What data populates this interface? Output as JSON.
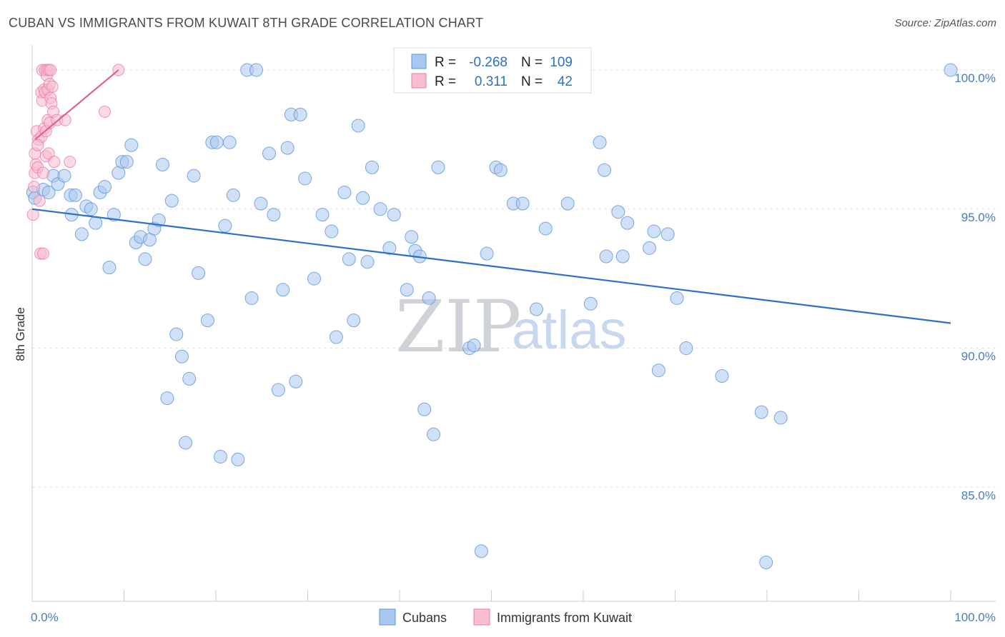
{
  "title": "CUBAN VS IMMIGRANTS FROM KUWAIT 8TH GRADE CORRELATION CHART",
  "source": "Source: ZipAtlas.com",
  "watermark": {
    "zip": "ZIP",
    "atlas": "atlas"
  },
  "colors": {
    "blue": "#5b95d9",
    "blue_fill": "#a9c7f0",
    "blue_line": "#2f6fc9",
    "pink": "#ec7da3",
    "pink_fill": "#f7bcd0",
    "pink_line": "#e06090"
  },
  "legend": {
    "r_label": "R =",
    "n_label": "N =",
    "rows": [
      {
        "r": "-0.268",
        "n": "109"
      },
      {
        "r": "0.311",
        "n": "42"
      }
    ]
  },
  "chart_data": {
    "type": "scatter",
    "title": "CUBAN VS IMMIGRANTS FROM KUWAIT 8TH GRADE CORRELATION CHART",
    "xlabel": "",
    "ylabel": "8th Grade",
    "xlim": [
      0,
      100
    ],
    "ylim": [
      80.9,
      100.9
    ],
    "x_tick_labels": [
      "0.0%",
      "100.0%"
    ],
    "y_ticks": [
      85,
      90,
      95,
      100
    ],
    "y_tick_labels": [
      "85.0%",
      "90.0%",
      "95.0%",
      "100.0%"
    ],
    "grid": true,
    "legend_position": "top-center",
    "series": [
      {
        "name": "Cubans",
        "trend": {
          "x": [
            0,
            100
          ],
          "y": [
            95.0,
            90.9
          ]
        },
        "points": [
          [
            0.1,
            95.6
          ],
          [
            0.3,
            95.4
          ],
          [
            1.2,
            95.7
          ],
          [
            1.8,
            95.6
          ],
          [
            2.3,
            96.2
          ],
          [
            2.8,
            95.9
          ],
          [
            3.5,
            96.2
          ],
          [
            4.2,
            95.5
          ],
          [
            4.3,
            94.8
          ],
          [
            4.7,
            95.5
          ],
          [
            5.4,
            94.1
          ],
          [
            5.9,
            95.1
          ],
          [
            6.4,
            95.0
          ],
          [
            6.9,
            94.5
          ],
          [
            7.4,
            95.6
          ],
          [
            7.9,
            95.8
          ],
          [
            8.4,
            92.9
          ],
          [
            8.9,
            94.8
          ],
          [
            9.4,
            96.3
          ],
          [
            9.8,
            96.7
          ],
          [
            10.3,
            96.7
          ],
          [
            10.8,
            97.3
          ],
          [
            11.3,
            93.8
          ],
          [
            11.8,
            94.0
          ],
          [
            12.3,
            93.2
          ],
          [
            12.8,
            93.9
          ],
          [
            13.3,
            94.3
          ],
          [
            13.8,
            94.6
          ],
          [
            14.2,
            96.6
          ],
          [
            14.7,
            88.2
          ],
          [
            15.2,
            95.3
          ],
          [
            15.7,
            90.5
          ],
          [
            16.3,
            89.7
          ],
          [
            16.7,
            86.6
          ],
          [
            17.1,
            88.9
          ],
          [
            17.6,
            96.2
          ],
          [
            18.1,
            92.7
          ],
          [
            19.1,
            91.0
          ],
          [
            19.6,
            97.4
          ],
          [
            20.1,
            97.4
          ],
          [
            20.5,
            86.1
          ],
          [
            21.0,
            94.4
          ],
          [
            21.5,
            97.4
          ],
          [
            21.9,
            95.5
          ],
          [
            22.4,
            86.0
          ],
          [
            23.4,
            100.0
          ],
          [
            23.9,
            91.8
          ],
          [
            24.4,
            100.0
          ],
          [
            24.9,
            95.2
          ],
          [
            25.8,
            97.0
          ],
          [
            26.3,
            94.8
          ],
          [
            26.8,
            88.5
          ],
          [
            27.3,
            92.1
          ],
          [
            27.8,
            97.2
          ],
          [
            28.2,
            98.4
          ],
          [
            28.7,
            88.8
          ],
          [
            29.2,
            98.4
          ],
          [
            29.7,
            96.1
          ],
          [
            30.7,
            92.5
          ],
          [
            31.6,
            94.8
          ],
          [
            32.6,
            94.2
          ],
          [
            33.1,
            90.4
          ],
          [
            34.0,
            95.6
          ],
          [
            34.5,
            93.2
          ],
          [
            35.0,
            91.0
          ],
          [
            35.5,
            98.0
          ],
          [
            36.0,
            95.4
          ],
          [
            36.5,
            93.1
          ],
          [
            37.0,
            96.5
          ],
          [
            37.9,
            95.0
          ],
          [
            38.9,
            93.6
          ],
          [
            39.4,
            94.8
          ],
          [
            40.8,
            92.1
          ],
          [
            41.3,
            94.0
          ],
          [
            41.7,
            93.5
          ],
          [
            42.2,
            93.3
          ],
          [
            42.7,
            87.8
          ],
          [
            43.2,
            91.8
          ],
          [
            43.7,
            86.9
          ],
          [
            44.2,
            96.5
          ],
          [
            47.6,
            90.0
          ],
          [
            48.1,
            90.1
          ],
          [
            48.9,
            82.7
          ],
          [
            49.5,
            93.4
          ],
          [
            50.5,
            96.5
          ],
          [
            51.0,
            96.4
          ],
          [
            52.4,
            95.2
          ],
          [
            53.4,
            95.2
          ],
          [
            54.9,
            91.4
          ],
          [
            55.9,
            94.3
          ],
          [
            58.3,
            95.2
          ],
          [
            60.8,
            91.6
          ],
          [
            61.8,
            97.4
          ],
          [
            62.3,
            96.4
          ],
          [
            62.5,
            93.3
          ],
          [
            63.8,
            94.9
          ],
          [
            64.3,
            93.3
          ],
          [
            64.8,
            94.5
          ],
          [
            67.2,
            93.6
          ],
          [
            67.7,
            94.2
          ],
          [
            68.2,
            89.2
          ],
          [
            69.2,
            94.1
          ],
          [
            70.2,
            91.8
          ],
          [
            71.2,
            90.0
          ],
          [
            75.1,
            89.0
          ],
          [
            79.4,
            87.7
          ],
          [
            79.9,
            82.3
          ],
          [
            81.5,
            87.5
          ],
          [
            100.0,
            100.0
          ]
        ]
      },
      {
        "name": "Immigrants from Kuwait",
        "trend": {
          "x": [
            0.3,
            9.4
          ],
          "y": [
            97.5,
            100.0
          ]
        },
        "points": [
          [
            0.1,
            94.8
          ],
          [
            0.2,
            95.8
          ],
          [
            0.3,
            96.3
          ],
          [
            0.3,
            97.0
          ],
          [
            0.4,
            96.6
          ],
          [
            0.5,
            97.8
          ],
          [
            0.6,
            96.5
          ],
          [
            0.7,
            97.5
          ],
          [
            0.8,
            95.3
          ],
          [
            0.9,
            93.4
          ],
          [
            1.0,
            99.2
          ],
          [
            1.0,
            97.6
          ],
          [
            1.1,
            98.9
          ],
          [
            1.1,
            100.0
          ],
          [
            1.2,
            96.3
          ],
          [
            1.2,
            93.4
          ],
          [
            1.3,
            99.3
          ],
          [
            1.3,
            97.9
          ],
          [
            1.4,
            100.0
          ],
          [
            1.4,
            99.2
          ],
          [
            1.5,
            97.8
          ],
          [
            1.5,
            96.9
          ],
          [
            1.6,
            100.0
          ],
          [
            1.6,
            99.8
          ],
          [
            1.7,
            99.3
          ],
          [
            1.7,
            98.2
          ],
          [
            1.8,
            100.0
          ],
          [
            1.8,
            97.0
          ],
          [
            1.9,
            99.5
          ],
          [
            1.9,
            98.1
          ],
          [
            2.0,
            100.0
          ],
          [
            2.0,
            99.0
          ],
          [
            2.1,
            98.8
          ],
          [
            2.2,
            99.4
          ],
          [
            2.3,
            98.5
          ],
          [
            2.4,
            96.7
          ],
          [
            2.7,
            98.2
          ],
          [
            3.6,
            98.2
          ],
          [
            4.1,
            96.7
          ],
          [
            7.9,
            98.5
          ],
          [
            9.4,
            100.0
          ],
          [
            0.6,
            97.3
          ]
        ]
      }
    ]
  },
  "bottom_legend": [
    {
      "label": "Cubans"
    },
    {
      "label": "Immigrants from Kuwait"
    }
  ]
}
